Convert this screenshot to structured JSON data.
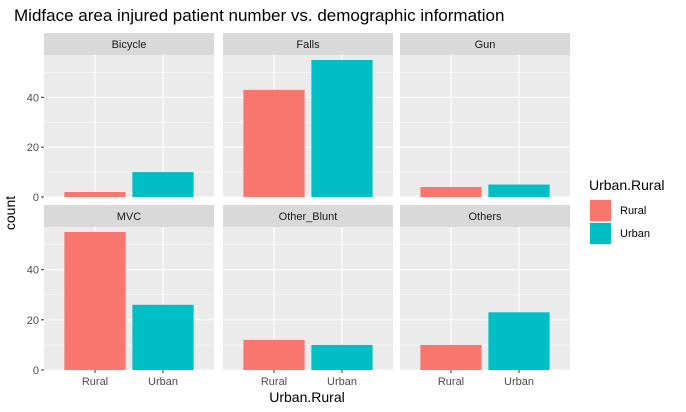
{
  "colors": {
    "Rural": "#F8766D",
    "Urban": "#00BFC4",
    "panel_bg": "#EBEBEB",
    "strip_bg": "#D9D9D9",
    "grid": "#FFFFFF"
  },
  "chart_data": {
    "type": "bar",
    "title": "Midface area injured patient number vs. demographic information",
    "xlabel": "Urban.Rural",
    "ylabel": "count",
    "categories": [
      "Rural",
      "Urban"
    ],
    "ylim": [
      0,
      57
    ],
    "yticks": [
      0,
      20,
      40
    ],
    "grid": true,
    "legend": {
      "title": "Urban.Rural",
      "position": "right",
      "entries": [
        "Rural",
        "Urban"
      ]
    },
    "facets": [
      {
        "name": "Bicycle",
        "values": [
          2,
          10
        ]
      },
      {
        "name": "Falls",
        "values": [
          43,
          55
        ]
      },
      {
        "name": "Gun",
        "values": [
          4,
          5
        ]
      },
      {
        "name": "MVC",
        "values": [
          55,
          26
        ]
      },
      {
        "name": "Other_Blunt",
        "values": [
          12,
          10
        ]
      },
      {
        "name": "Others",
        "values": [
          10,
          23
        ]
      }
    ]
  }
}
